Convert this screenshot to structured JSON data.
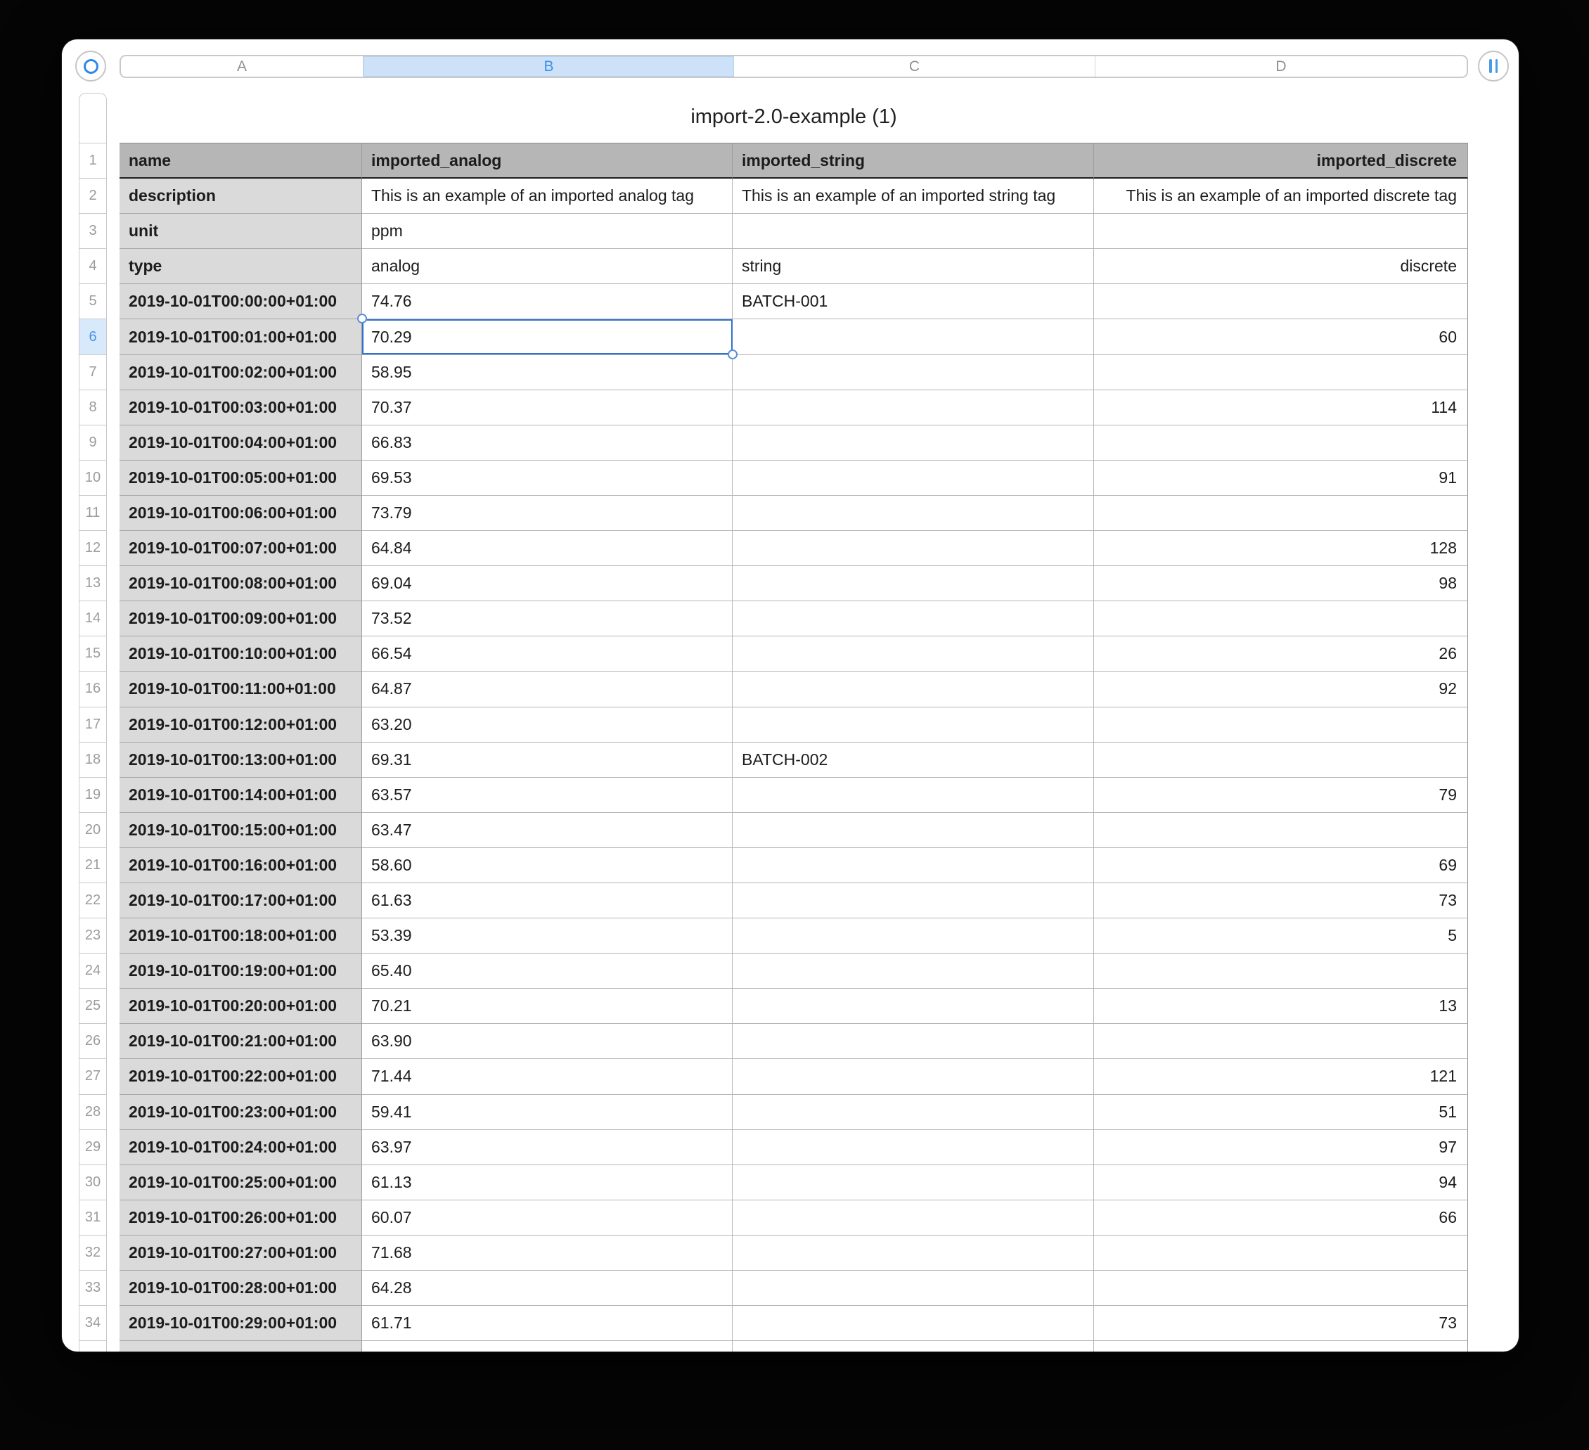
{
  "window": {
    "title": "import-2.0-example (1)"
  },
  "columns": {
    "letters": [
      "A",
      "B",
      "C",
      "D"
    ],
    "selected": "B"
  },
  "gutter": {
    "count": 34
  },
  "selection": {
    "cell": "B6",
    "row": 6,
    "column": "B",
    "value": "70.29"
  },
  "icons": {
    "left_handle": "table-select-ring-icon",
    "right_handle": "double-bar-handle-icon"
  },
  "colors": {
    "accent_blue": "#3e90ea",
    "selection_border": "#2f72cd",
    "selected_row_tint": "#d9e9fc",
    "selected_column_tint": "#cde1f8",
    "header_row_gray": "#b6b6b6",
    "label_column_gray": "#dadada",
    "window_background": "#ffffff",
    "frame_background": "#050505"
  },
  "table": {
    "rows": [
      {
        "n": 1,
        "a": "name",
        "b": "imported_analog",
        "c": "imported_string",
        "d": "imported_discrete"
      },
      {
        "n": 2,
        "a": "description",
        "b": "This is an example of an imported analog tag",
        "c": "This is an example of an imported string tag",
        "d": "This is an example of an imported discrete tag"
      },
      {
        "n": 3,
        "a": "unit",
        "b": "ppm",
        "c": "",
        "d": ""
      },
      {
        "n": 4,
        "a": "type",
        "b": "analog",
        "c": "string",
        "d": "discrete"
      },
      {
        "n": 5,
        "a": "2019-10-01T00:00:00+01:00",
        "b": "74.76",
        "c": "BATCH-001",
        "d": ""
      },
      {
        "n": 6,
        "a": "2019-10-01T00:01:00+01:00",
        "b": "70.29",
        "c": "",
        "d": "60"
      },
      {
        "n": 7,
        "a": "2019-10-01T00:02:00+01:00",
        "b": "58.95",
        "c": "",
        "d": ""
      },
      {
        "n": 8,
        "a": "2019-10-01T00:03:00+01:00",
        "b": "70.37",
        "c": "",
        "d": "114"
      },
      {
        "n": 9,
        "a": "2019-10-01T00:04:00+01:00",
        "b": "66.83",
        "c": "",
        "d": ""
      },
      {
        "n": 10,
        "a": "2019-10-01T00:05:00+01:00",
        "b": "69.53",
        "c": "",
        "d": "91"
      },
      {
        "n": 11,
        "a": "2019-10-01T00:06:00+01:00",
        "b": "73.79",
        "c": "",
        "d": ""
      },
      {
        "n": 12,
        "a": "2019-10-01T00:07:00+01:00",
        "b": "64.84",
        "c": "",
        "d": "128"
      },
      {
        "n": 13,
        "a": "2019-10-01T00:08:00+01:00",
        "b": "69.04",
        "c": "",
        "d": "98"
      },
      {
        "n": 14,
        "a": "2019-10-01T00:09:00+01:00",
        "b": "73.52",
        "c": "",
        "d": ""
      },
      {
        "n": 15,
        "a": "2019-10-01T00:10:00+01:00",
        "b": "66.54",
        "c": "",
        "d": "26"
      },
      {
        "n": 16,
        "a": "2019-10-01T00:11:00+01:00",
        "b": "64.87",
        "c": "",
        "d": "92"
      },
      {
        "n": 17,
        "a": "2019-10-01T00:12:00+01:00",
        "b": "63.20",
        "c": "",
        "d": ""
      },
      {
        "n": 18,
        "a": "2019-10-01T00:13:00+01:00",
        "b": "69.31",
        "c": "BATCH-002",
        "d": ""
      },
      {
        "n": 19,
        "a": "2019-10-01T00:14:00+01:00",
        "b": "63.57",
        "c": "",
        "d": "79"
      },
      {
        "n": 20,
        "a": "2019-10-01T00:15:00+01:00",
        "b": "63.47",
        "c": "",
        "d": ""
      },
      {
        "n": 21,
        "a": "2019-10-01T00:16:00+01:00",
        "b": "58.60",
        "c": "",
        "d": "69"
      },
      {
        "n": 22,
        "a": "2019-10-01T00:17:00+01:00",
        "b": "61.63",
        "c": "",
        "d": "73"
      },
      {
        "n": 23,
        "a": "2019-10-01T00:18:00+01:00",
        "b": "53.39",
        "c": "",
        "d": "5"
      },
      {
        "n": 24,
        "a": "2019-10-01T00:19:00+01:00",
        "b": "65.40",
        "c": "",
        "d": ""
      },
      {
        "n": 25,
        "a": "2019-10-01T00:20:00+01:00",
        "b": "70.21",
        "c": "",
        "d": "13"
      },
      {
        "n": 26,
        "a": "2019-10-01T00:21:00+01:00",
        "b": "63.90",
        "c": "",
        "d": ""
      },
      {
        "n": 27,
        "a": "2019-10-01T00:22:00+01:00",
        "b": "71.44",
        "c": "",
        "d": "121"
      },
      {
        "n": 28,
        "a": "2019-10-01T00:23:00+01:00",
        "b": "59.41",
        "c": "",
        "d": "51"
      },
      {
        "n": 29,
        "a": "2019-10-01T00:24:00+01:00",
        "b": "63.97",
        "c": "",
        "d": "97"
      },
      {
        "n": 30,
        "a": "2019-10-01T00:25:00+01:00",
        "b": "61.13",
        "c": "",
        "d": "94"
      },
      {
        "n": 31,
        "a": "2019-10-01T00:26:00+01:00",
        "b": "60.07",
        "c": "",
        "d": "66"
      },
      {
        "n": 32,
        "a": "2019-10-01T00:27:00+01:00",
        "b": "71.68",
        "c": "",
        "d": ""
      },
      {
        "n": 33,
        "a": "2019-10-01T00:28:00+01:00",
        "b": "64.28",
        "c": "",
        "d": ""
      },
      {
        "n": 34,
        "a": "2019-10-01T00:29:00+01:00",
        "b": "61.71",
        "c": "",
        "d": "73"
      }
    ]
  }
}
